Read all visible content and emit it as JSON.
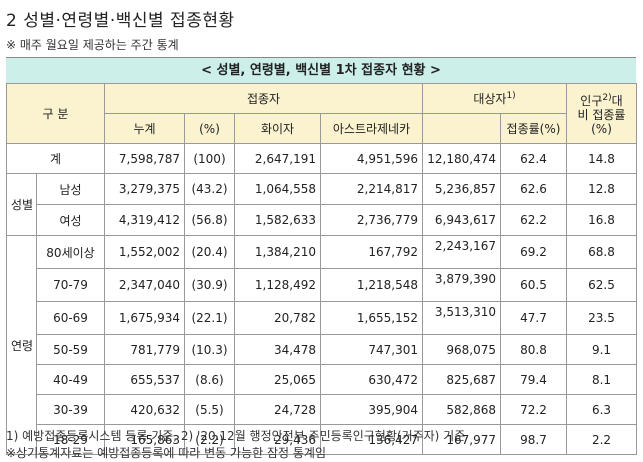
{
  "title": "2 성별·연령별·백신별 접종현황",
  "note_top": "※ 매주 월요일 제공하는 주간 통계",
  "caption": "< 성별, 연령별, 백신별 1차 접종자 현황 >",
  "headers": {
    "category": "구 분",
    "vaccinated": "접종자",
    "target": "대상자",
    "target_sup": "1)",
    "pop_rate_line1": "인구",
    "pop_rate_sup": "2)",
    "pop_rate_line1b": "대",
    "pop_rate_line2": "비 접종률",
    "pop_rate_line3": "(%)",
    "cumulative": "누계",
    "pct": "(%)",
    "pfizer": "화이자",
    "astra": "아스트라제네카",
    "rate": "접종률(%)"
  },
  "total_row": {
    "label": "계",
    "cum": "7,598,787",
    "pct": "(100)",
    "pfizer": "2,647,191",
    "astra": "4,951,596",
    "target": "12,180,474",
    "rate": "62.4",
    "pop_rate": "14.8"
  },
  "gender_group": "성별",
  "gender_rows": [
    {
      "label": "남성",
      "cum": "3,279,375",
      "pct": "(43.2)",
      "pfizer": "1,064,558",
      "astra": "2,214,817",
      "target": "5,236,857",
      "rate": "62.6",
      "pop_rate": "12.8"
    },
    {
      "label": "여성",
      "cum": "4,319,412",
      "pct": "(56.8)",
      "pfizer": "1,582,633",
      "astra": "2,736,779",
      "target": "6,943,617",
      "rate": "62.2",
      "pop_rate": "16.8"
    }
  ],
  "age_group": "연령",
  "age_rows": [
    {
      "label": "80세이상",
      "cum": "1,552,002",
      "pct": "(20.4)",
      "pfizer": "1,384,210",
      "astra": "167,792",
      "target": "2,243,167",
      "rate": "69.2",
      "pop_rate": "68.8",
      "upper": true
    },
    {
      "label": "70-79",
      "cum": "2,347,040",
      "pct": "(30.9)",
      "pfizer": "1,128,492",
      "astra": "1,218,548",
      "target": "3,879,390",
      "rate": "60.5",
      "pop_rate": "62.5",
      "upper": true
    },
    {
      "label": "60-69",
      "cum": "1,675,934",
      "pct": "(22.1)",
      "pfizer": "20,782",
      "astra": "1,655,152",
      "target": "3,513,310",
      "rate": "47.7",
      "pop_rate": "23.5",
      "upper": true
    },
    {
      "label": "50-59",
      "cum": "781,779",
      "pct": "(10.3)",
      "pfizer": "34,478",
      "astra": "747,301",
      "target": "968,075",
      "rate": "80.8",
      "pop_rate": "9.1",
      "upper": false
    },
    {
      "label": "40-49",
      "cum": "655,537",
      "pct": "(8.6)",
      "pfizer": "25,065",
      "astra": "630,472",
      "target": "825,687",
      "rate": "79.4",
      "pop_rate": "8.1",
      "upper": false
    },
    {
      "label": "30-39",
      "cum": "420,632",
      "pct": "(5.5)",
      "pfizer": "24,728",
      "astra": "395,904",
      "target": "582,868",
      "rate": "72.2",
      "pop_rate": "6.3",
      "upper": false
    },
    {
      "label": "18-29",
      "cum": "165,863",
      "pct": "(2.2)",
      "pfizer": "29,436",
      "astra": "136,427",
      "target": "167,977",
      "rate": "98.7",
      "pop_rate": "2.2",
      "upper": false
    }
  ],
  "footnote1": "1) 예방접종등록시스템 등록 기준,       2) '20.12월 행정안전부 주민등록인구현황(거주자) 기준",
  "footnote2": "※상기통계자료는 예방접종등록에 따라 변동 가능한 잠정 통계임"
}
